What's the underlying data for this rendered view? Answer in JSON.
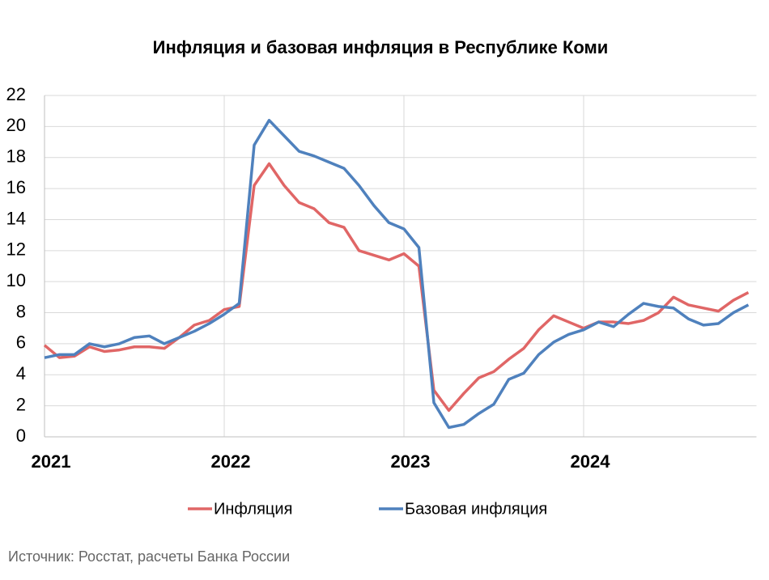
{
  "chart_data": {
    "type": "line",
    "title": "Инфляция и базовая инфляция в Республике Коми",
    "categories": [
      "2021",
      null,
      null,
      null,
      null,
      null,
      null,
      null,
      null,
      null,
      null,
      null,
      "2022",
      null,
      null,
      null,
      null,
      null,
      null,
      null,
      null,
      null,
      null,
      null,
      "2023",
      null,
      null,
      null,
      null,
      null,
      null,
      null,
      null,
      null,
      null,
      null,
      "2024",
      null,
      null,
      null,
      null,
      null,
      null,
      null,
      null,
      null,
      null,
      null
    ],
    "series": [
      {
        "name": "Инфляция",
        "color": "#e06666",
        "values": [
          5.9,
          5.1,
          5.2,
          5.8,
          5.5,
          5.6,
          5.8,
          5.8,
          5.7,
          6.4,
          7.2,
          7.5,
          8.2,
          8.4,
          16.2,
          17.6,
          16.2,
          15.1,
          14.7,
          13.8,
          13.5,
          12.0,
          11.7,
          11.4,
          11.8,
          11.0,
          3.0,
          1.7,
          2.8,
          3.8,
          4.2,
          5.0,
          5.7,
          6.9,
          7.8,
          7.4,
          7.0,
          7.4,
          7.4,
          7.3,
          7.5,
          8.0,
          9.0,
          8.5,
          8.3,
          8.1,
          8.8,
          9.3
        ]
      },
      {
        "name": "Базовая инфляция",
        "color": "#4f81bd",
        "values": [
          5.1,
          5.3,
          5.3,
          6.0,
          5.8,
          6.0,
          6.4,
          6.5,
          6.0,
          6.4,
          6.8,
          7.3,
          7.9,
          8.6,
          18.8,
          20.4,
          19.4,
          18.4,
          18.1,
          17.7,
          17.3,
          16.2,
          14.9,
          13.8,
          13.4,
          12.2,
          2.2,
          0.6,
          0.8,
          1.5,
          2.1,
          3.7,
          4.1,
          5.3,
          6.1,
          6.6,
          6.9,
          7.4,
          7.1,
          7.9,
          8.6,
          8.4,
          8.3,
          7.6,
          7.2,
          7.3,
          8.0,
          8.5
        ]
      }
    ],
    "ylim": [
      0,
      22
    ],
    "yticks": [
      0,
      2,
      4,
      6,
      8,
      10,
      12,
      14,
      16,
      18,
      20,
      22
    ],
    "grid": true,
    "legend": "bottom",
    "source": "Источник: Росстат, расчеты Банка России"
  }
}
